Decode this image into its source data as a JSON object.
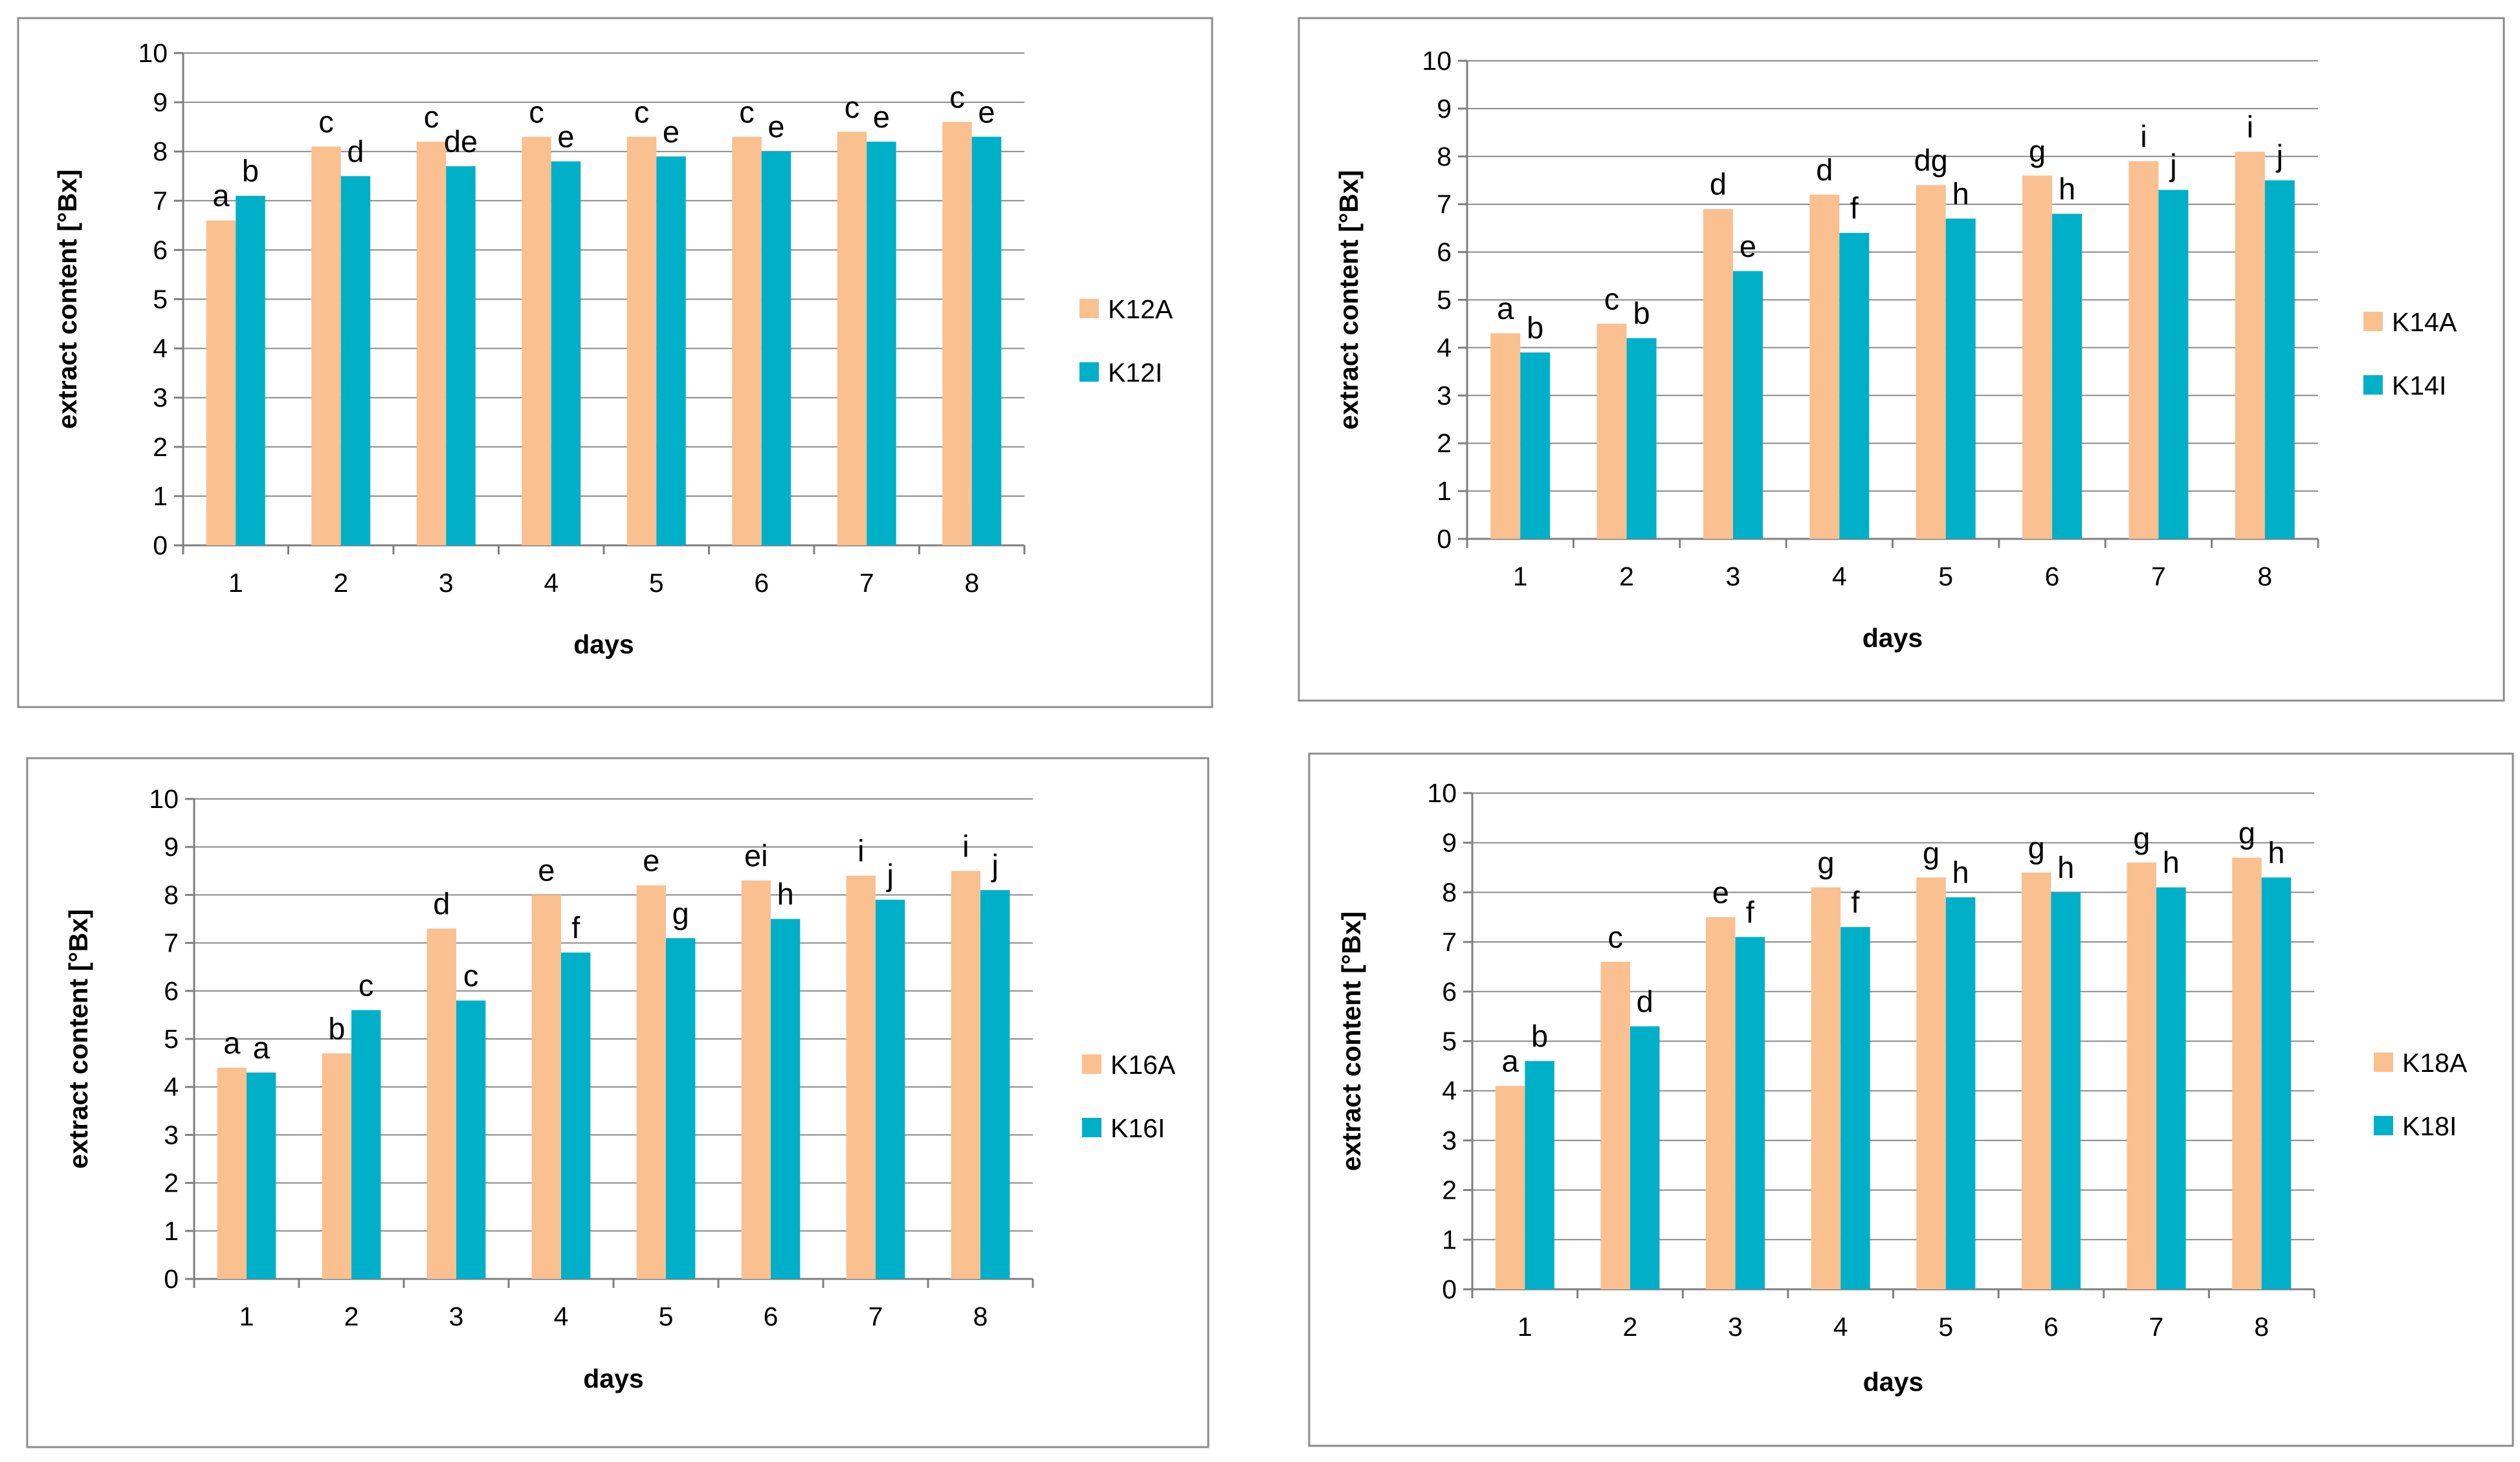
{
  "colors": {
    "series_a": "#FAC090",
    "series_i": "#00B0C8"
  },
  "chart_data": [
    {
      "type": "bar",
      "categories": [
        "1",
        "2",
        "3",
        "4",
        "5",
        "6",
        "7",
        "8"
      ],
      "xlabel": "days",
      "ylabel": "extract content [°Bx]",
      "ylim": [
        0,
        10
      ],
      "yticks": [
        "0",
        "1",
        "2",
        "3",
        "4",
        "5",
        "6",
        "7",
        "8",
        "9",
        "10"
      ],
      "grid": true,
      "legend_position": "right",
      "series": [
        {
          "name": "K12A",
          "values": [
            6.6,
            8.1,
            8.2,
            8.3,
            8.3,
            8.3,
            8.4,
            8.6
          ],
          "labels": [
            "a",
            "c",
            "c",
            "c",
            "c",
            "c",
            "c",
            "c"
          ]
        },
        {
          "name": "K12I",
          "values": [
            7.1,
            7.5,
            7.7,
            7.8,
            7.9,
            8.0,
            8.2,
            8.3
          ],
          "labels": [
            "b",
            "d",
            "de",
            "e",
            "e",
            "e",
            "e",
            "e"
          ]
        }
      ]
    },
    {
      "type": "bar",
      "categories": [
        "1",
        "2",
        "3",
        "4",
        "5",
        "6",
        "7",
        "8"
      ],
      "xlabel": "days",
      "ylabel": "extract content [°Bx]",
      "ylim": [
        0,
        10
      ],
      "yticks": [
        "0",
        "1",
        "2",
        "3",
        "4",
        "5",
        "6",
        "7",
        "8",
        "9",
        "10"
      ],
      "grid": true,
      "legend_position": "right",
      "series": [
        {
          "name": "K14A",
          "values": [
            4.3,
            4.5,
            6.9,
            7.2,
            7.4,
            7.6,
            7.9,
            8.1
          ],
          "labels": [
            "a",
            "c",
            "d",
            "d",
            "dg",
            "g",
            "i",
            "i"
          ]
        },
        {
          "name": "K14I",
          "values": [
            3.9,
            4.2,
            5.6,
            6.4,
            6.7,
            6.8,
            7.3,
            7.5
          ],
          "labels": [
            "b",
            "b",
            "e",
            "f",
            "h",
            "h",
            "j",
            "j"
          ]
        }
      ]
    },
    {
      "type": "bar",
      "categories": [
        "1",
        "2",
        "3",
        "4",
        "5",
        "6",
        "7",
        "8"
      ],
      "xlabel": "days",
      "ylabel": "extract content [°Bx]",
      "ylim": [
        0,
        10
      ],
      "yticks": [
        "0",
        "1",
        "2",
        "3",
        "4",
        "5",
        "6",
        "7",
        "8",
        "9",
        "10"
      ],
      "grid": true,
      "legend_position": "right",
      "series": [
        {
          "name": "K16A",
          "values": [
            4.4,
            4.7,
            7.3,
            8.0,
            8.2,
            8.3,
            8.4,
            8.5
          ],
          "labels": [
            "a",
            "b",
            "d",
            "e",
            "e",
            "ei",
            "i",
            "i"
          ]
        },
        {
          "name": "K16I",
          "values": [
            4.3,
            5.6,
            5.8,
            6.8,
            7.1,
            7.5,
            7.9,
            8.1
          ],
          "labels": [
            "a",
            "c",
            "c",
            "f",
            "g",
            "h",
            "j",
            "j"
          ]
        }
      ]
    },
    {
      "type": "bar",
      "categories": [
        "1",
        "2",
        "3",
        "4",
        "5",
        "6",
        "7",
        "8"
      ],
      "xlabel": "days",
      "ylabel": "extract content [°Bx]",
      "ylim": [
        0,
        10
      ],
      "yticks": [
        "0",
        "1",
        "2",
        "3",
        "4",
        "5",
        "6",
        "7",
        "8",
        "9",
        "10"
      ],
      "grid": true,
      "legend_position": "right",
      "series": [
        {
          "name": "K18A",
          "values": [
            4.1,
            6.6,
            7.5,
            8.1,
            8.3,
            8.4,
            8.6,
            8.7
          ],
          "labels": [
            "a",
            "c",
            "e",
            "g",
            "g",
            "g",
            "g",
            "g"
          ]
        },
        {
          "name": "K18I",
          "values": [
            4.6,
            5.3,
            7.1,
            7.3,
            7.9,
            8.0,
            8.1,
            8.3
          ],
          "labels": [
            "b",
            "d",
            "f",
            "f",
            "h",
            "h",
            "h",
            "h"
          ]
        }
      ]
    }
  ]
}
